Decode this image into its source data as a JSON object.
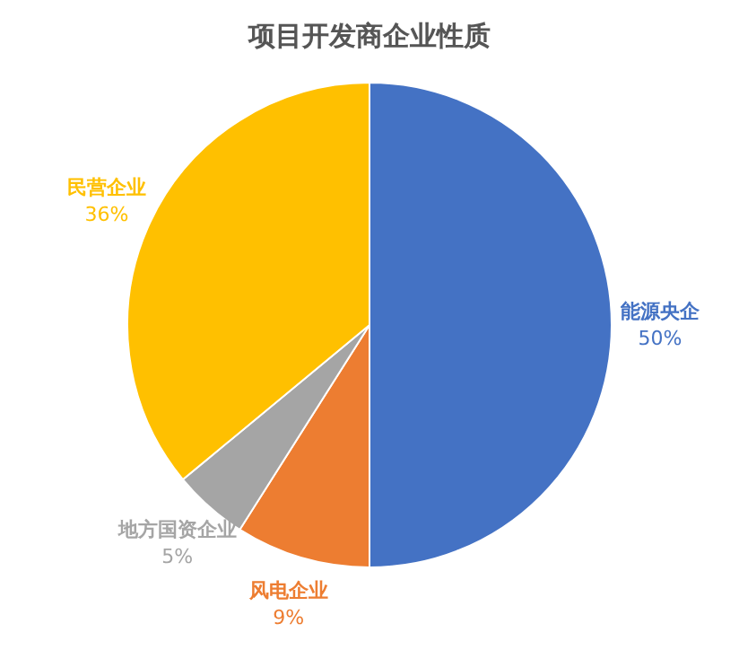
{
  "chart_data": {
    "type": "pie",
    "title": "项目开发商企业性质",
    "categories": [
      "能源央企",
      "风电企业",
      "地方国资企业",
      "民营企业"
    ],
    "values": [
      50,
      9,
      5,
      36
    ],
    "colors": [
      "#4472c4",
      "#ed7d31",
      "#a5a5a5",
      "#ffc000"
    ],
    "value_labels": [
      "50%",
      "9%",
      "5%",
      "36%"
    ],
    "legend": false
  }
}
